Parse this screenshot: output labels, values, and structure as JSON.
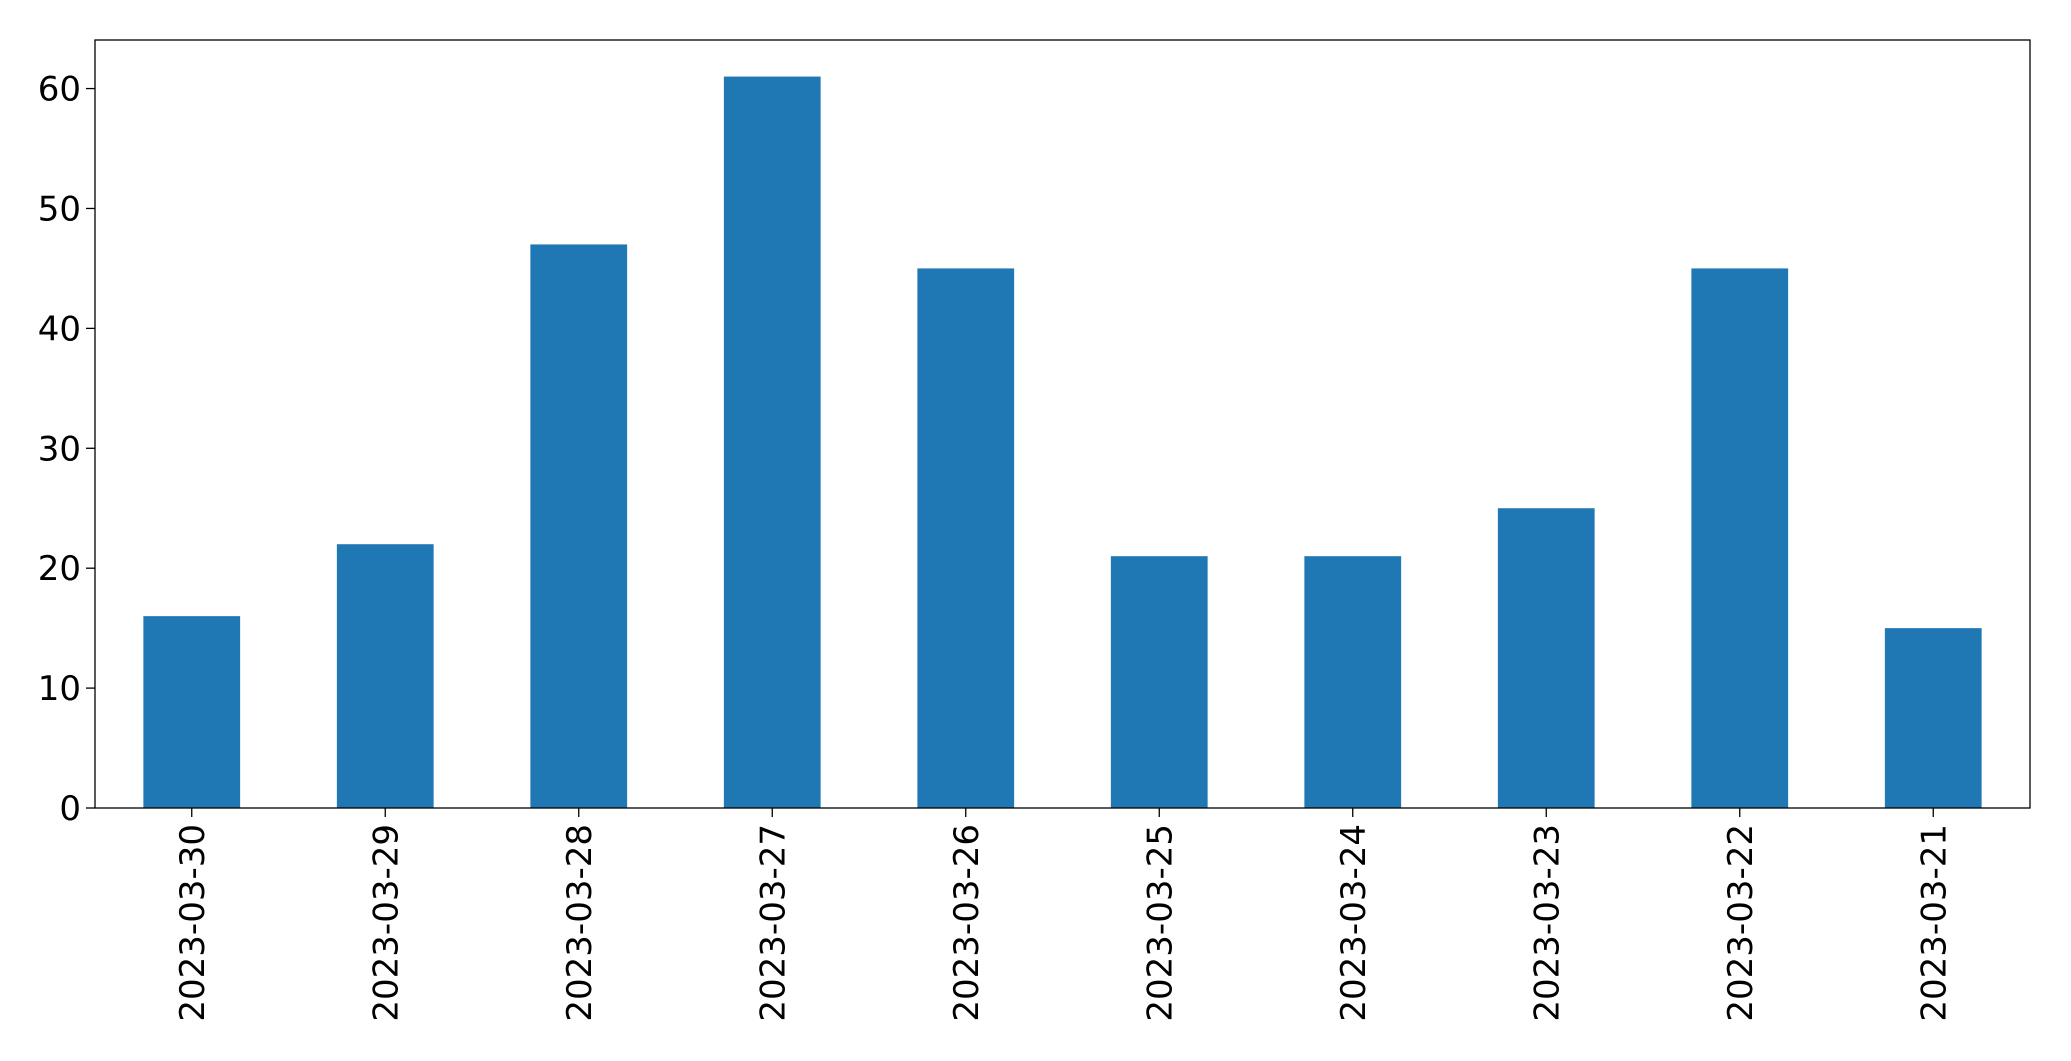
{
  "chart_data": {
    "type": "bar",
    "categories": [
      "2023-03-30",
      "2023-03-29",
      "2023-03-28",
      "2023-03-27",
      "2023-03-26",
      "2023-03-25",
      "2023-03-24",
      "2023-03-23",
      "2023-03-22",
      "2023-03-21"
    ],
    "values": [
      16,
      22,
      47,
      61,
      45,
      21,
      21,
      25,
      45,
      15
    ],
    "color": "#1f77b4",
    "ylim": [
      0,
      64.05
    ],
    "yticks": [
      0,
      10,
      20,
      30,
      40,
      50,
      60
    ],
    "grid": false
  }
}
